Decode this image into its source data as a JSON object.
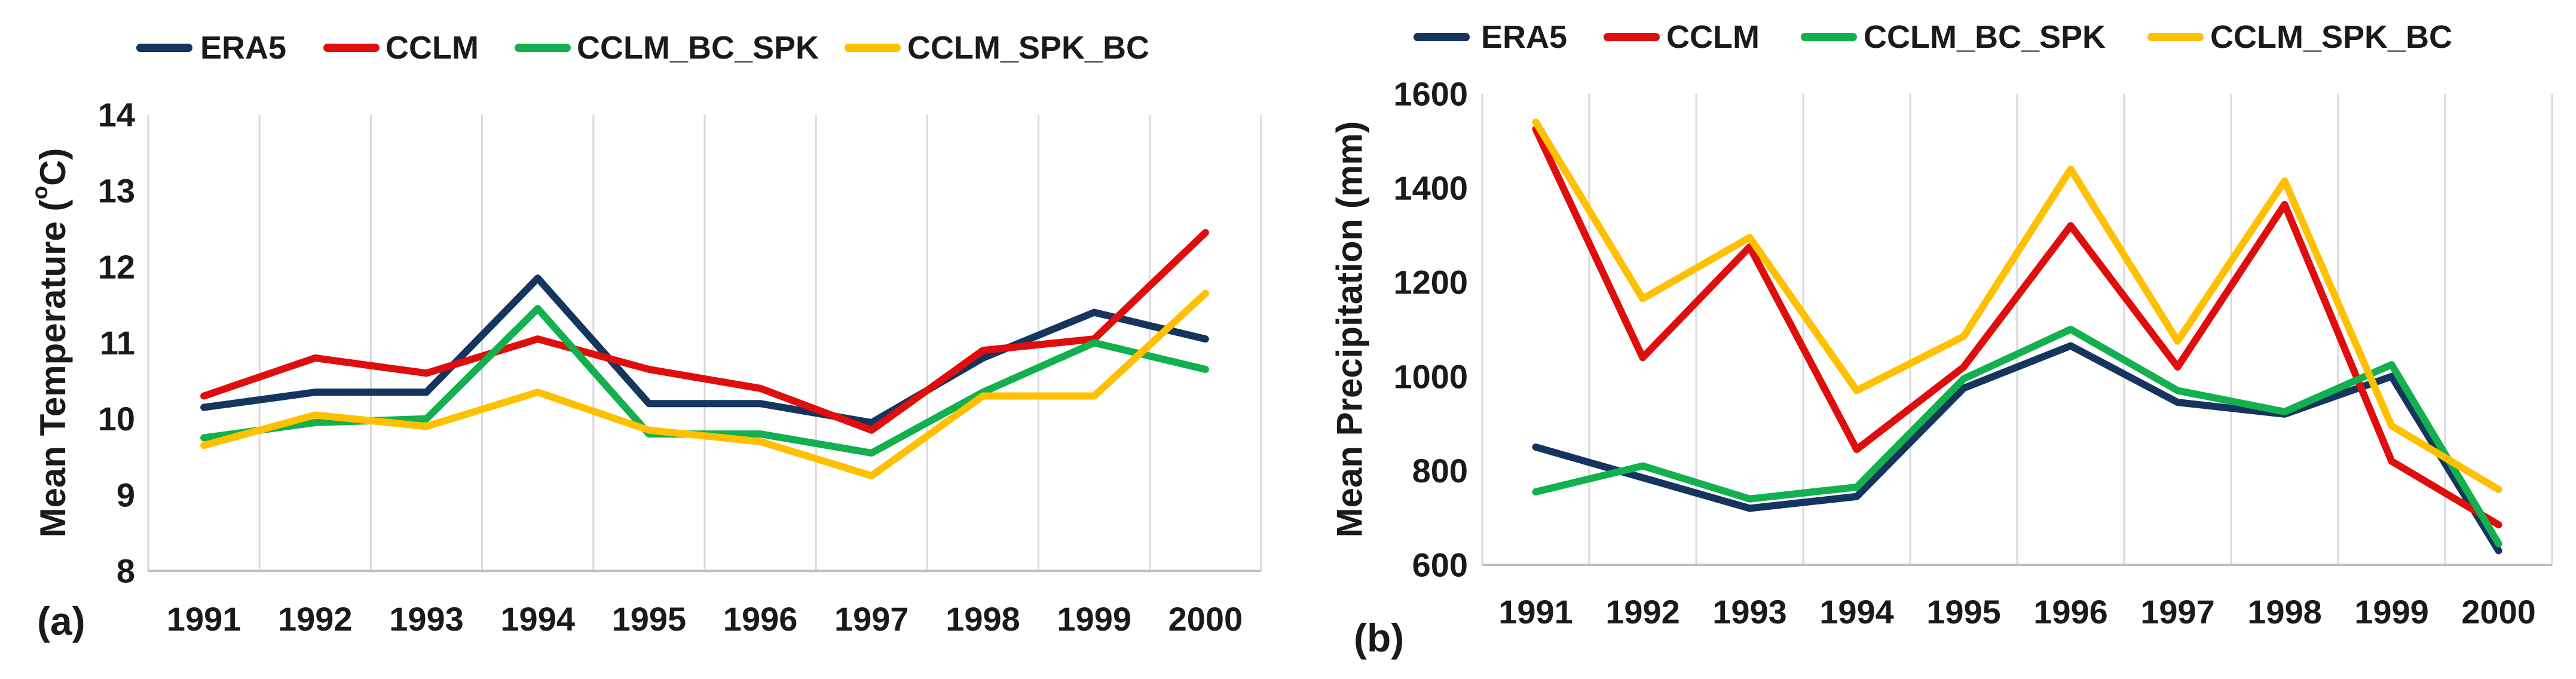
{
  "colors": {
    "ERA5": "#15345e",
    "CCLM": "#e00d0d",
    "CCLM_BC_SPK": "#12b04e",
    "CCLM_SPK_BC": "#ffc000",
    "grid": "#d9d9d9",
    "axis": "#bfbfbf",
    "text": "#1a1a1a"
  },
  "chart_data": [
    {
      "type": "line",
      "panel_label": "(a)",
      "title": "",
      "xlabel": "",
      "ylabel_prefix": "Mean Temperature (",
      "ylabel_sup": "o",
      "ylabel_suffix": "C)",
      "categories": [
        "1991",
        "1992",
        "1993",
        "1994",
        "1995",
        "1996",
        "1997",
        "1998",
        "1999",
        "2000"
      ],
      "ylim": [
        8,
        14
      ],
      "yticks": [
        8,
        9,
        10,
        11,
        12,
        13,
        14
      ],
      "ytick_labels": [
        "8",
        "9",
        "10",
        "11",
        "12",
        "13",
        "14"
      ],
      "grid": "vertical",
      "legend_position": "top",
      "series": [
        {
          "name": "ERA5",
          "values": [
            10.15,
            10.35,
            10.35,
            11.85,
            10.2,
            10.2,
            9.95,
            10.8,
            11.4,
            11.05
          ]
        },
        {
          "name": "CCLM",
          "values": [
            10.3,
            10.8,
            10.6,
            11.05,
            10.65,
            10.4,
            9.85,
            10.9,
            11.05,
            12.45
          ]
        },
        {
          "name": "CCLM_BC_SPK",
          "values": [
            9.75,
            9.95,
            10.0,
            11.45,
            9.8,
            9.8,
            9.55,
            10.35,
            11.0,
            10.65
          ]
        },
        {
          "name": "CCLM_SPK_BC",
          "values": [
            9.65,
            10.05,
            9.9,
            10.35,
            9.85,
            9.7,
            9.25,
            10.3,
            10.3,
            11.65
          ]
        }
      ]
    },
    {
      "type": "line",
      "panel_label": "(b)",
      "title": "",
      "xlabel": "",
      "ylabel": "Mean Precipitation (mm)",
      "categories": [
        "1991",
        "1992",
        "1993",
        "1994",
        "1995",
        "1996",
        "1997",
        "1998",
        "1999",
        "2000"
      ],
      "ylim": [
        600,
        1600
      ],
      "yticks": [
        600,
        800,
        1000,
        1200,
        1400,
        1600
      ],
      "ytick_labels": [
        "600",
        "800",
        "1000",
        "1200",
        "1400",
        "1600"
      ],
      "grid": "vertical",
      "legend_position": "top",
      "series": [
        {
          "name": "ERA5",
          "values": [
            850,
            785,
            720,
            745,
            975,
            1065,
            945,
            920,
            1000,
            630
          ]
        },
        {
          "name": "CCLM",
          "values": [
            1525,
            1040,
            1275,
            845,
            1020,
            1320,
            1020,
            1365,
            820,
            685
          ]
        },
        {
          "name": "CCLM_BC_SPK",
          "values": [
            755,
            810,
            740,
            765,
            995,
            1100,
            970,
            925,
            1025,
            645
          ]
        },
        {
          "name": "CCLM_SPK_BC",
          "values": [
            1540,
            1165,
            1295,
            970,
            1085,
            1440,
            1075,
            1415,
            895,
            760
          ]
        }
      ]
    }
  ]
}
